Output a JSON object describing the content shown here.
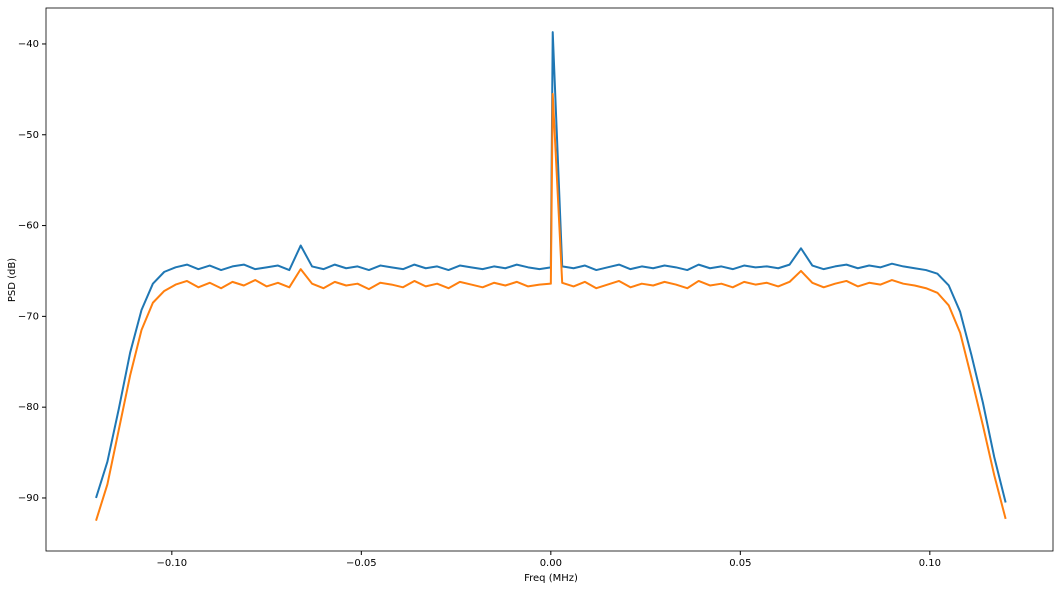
{
  "chart_data": {
    "type": "line",
    "xlabel": "Freq (MHz)",
    "ylabel": "PSD (dB)",
    "x": [
      -0.12,
      -0.117,
      -0.114,
      -0.111,
      -0.108,
      -0.105,
      -0.102,
      -0.099,
      -0.096,
      -0.093,
      -0.09,
      -0.087,
      -0.084,
      -0.081,
      -0.078,
      -0.075,
      -0.072,
      -0.069,
      -0.066,
      -0.063,
      -0.06,
      -0.057,
      -0.054,
      -0.051,
      -0.048,
      -0.045,
      -0.042,
      -0.039,
      -0.036,
      -0.033,
      -0.03,
      -0.027,
      -0.024,
      -0.021,
      -0.018,
      -0.015,
      -0.012,
      -0.009,
      -0.006,
      -0.003,
      0,
      0.0005,
      0.003,
      0.006,
      0.009,
      0.012,
      0.015,
      0.018,
      0.021,
      0.024,
      0.027,
      0.03,
      0.033,
      0.036,
      0.039,
      0.042,
      0.045,
      0.048,
      0.051,
      0.054,
      0.057,
      0.06,
      0.063,
      0.066,
      0.069,
      0.072,
      0.075,
      0.078,
      0.081,
      0.084,
      0.087,
      0.09,
      0.093,
      0.096,
      0.099,
      0.102,
      0.105,
      0.108,
      0.111,
      0.114,
      0.117,
      0.12
    ],
    "series": [
      {
        "color": "#1f77b4",
        "values": [
          -90.0,
          -86.0,
          -80.2,
          -74.0,
          -69.3,
          -66.4,
          -65.1,
          -64.6,
          -64.3,
          -64.8,
          -64.4,
          -64.9,
          -64.5,
          -64.3,
          -64.8,
          -64.6,
          -64.4,
          -64.9,
          -62.2,
          -64.5,
          -64.8,
          -64.3,
          -64.7,
          -64.5,
          -64.9,
          -64.4,
          -64.6,
          -64.8,
          -64.3,
          -64.7,
          -64.5,
          -64.9,
          -64.4,
          -64.6,
          -64.8,
          -64.5,
          -64.7,
          -64.3,
          -64.6,
          -64.8,
          -64.6,
          -38.7,
          -64.5,
          -64.7,
          -64.4,
          -64.9,
          -64.6,
          -64.3,
          -64.8,
          -64.5,
          -64.7,
          -64.4,
          -64.6,
          -64.9,
          -64.3,
          -64.7,
          -64.5,
          -64.8,
          -64.4,
          -64.6,
          -64.5,
          -64.7,
          -64.3,
          -62.5,
          -64.4,
          -64.8,
          -64.5,
          -64.3,
          -64.7,
          -64.4,
          -64.6,
          -64.2,
          -64.5,
          -64.7,
          -64.9,
          -65.3,
          -66.6,
          -69.5,
          -74.3,
          -79.5,
          -85.5,
          -90.5
        ]
      },
      {
        "color": "#ff7f0e",
        "values": [
          -92.5,
          -88.5,
          -82.5,
          -76.5,
          -71.5,
          -68.5,
          -67.2,
          -66.5,
          -66.1,
          -66.8,
          -66.3,
          -66.9,
          -66.2,
          -66.6,
          -66.0,
          -66.7,
          -66.3,
          -66.8,
          -64.8,
          -66.4,
          -66.9,
          -66.2,
          -66.6,
          -66.4,
          -67.0,
          -66.3,
          -66.5,
          -66.8,
          -66.1,
          -66.7,
          -66.4,
          -66.9,
          -66.2,
          -66.5,
          -66.8,
          -66.3,
          -66.6,
          -66.2,
          -66.7,
          -66.5,
          -66.4,
          -45.5,
          -66.3,
          -66.7,
          -66.2,
          -66.9,
          -66.5,
          -66.1,
          -66.8,
          -66.4,
          -66.6,
          -66.2,
          -66.5,
          -66.9,
          -66.1,
          -66.6,
          -66.4,
          -66.8,
          -66.2,
          -66.5,
          -66.3,
          -66.7,
          -66.2,
          -65.0,
          -66.3,
          -66.8,
          -66.4,
          -66.1,
          -66.7,
          -66.3,
          -66.5,
          -66.0,
          -66.4,
          -66.6,
          -66.9,
          -67.4,
          -68.8,
          -71.8,
          -76.8,
          -82.0,
          -87.5,
          -92.3
        ]
      }
    ],
    "xlim": [
      -0.1332,
      0.1325
    ],
    "ylim": [
      -95.84,
      -36.04
    ],
    "xticks": [
      {
        "value": -0.1,
        "label": "−0.10"
      },
      {
        "value": -0.05,
        "label": "−0.05"
      },
      {
        "value": 0,
        "label": "0.00"
      },
      {
        "value": 0.05,
        "label": "0.05"
      },
      {
        "value": 0.1,
        "label": "0.10"
      }
    ],
    "yticks": [
      {
        "value": -90,
        "label": "−90"
      },
      {
        "value": -80,
        "label": "−80"
      },
      {
        "value": -70,
        "label": "−70"
      },
      {
        "value": -60,
        "label": "−60"
      },
      {
        "value": -50,
        "label": "−50"
      },
      {
        "value": -40,
        "label": "−40"
      }
    ]
  }
}
